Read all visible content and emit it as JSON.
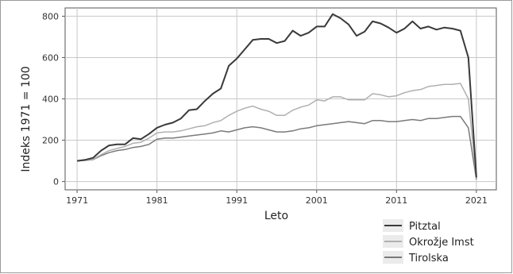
{
  "chart_data": {
    "type": "line",
    "title": "",
    "xlabel": "Leto",
    "ylabel": "Indeks 1971 = 100",
    "xlim": [
      1969.5,
      2023.5
    ],
    "ylim": [
      -40,
      840
    ],
    "x_ticks": [
      1971,
      1981,
      1991,
      2001,
      2011,
      2021
    ],
    "y_ticks": [
      0,
      200,
      400,
      600,
      800
    ],
    "grid": true,
    "legend_position": "bottom-right",
    "series": [
      {
        "name": "Pitztal",
        "color": "#3a3a3a",
        "x": [
          1971,
          1972,
          1973,
          1974,
          1975,
          1976,
          1977,
          1978,
          1979,
          1980,
          1981,
          1982,
          1983,
          1984,
          1985,
          1986,
          1987,
          1988,
          1989,
          1990,
          1991,
          1992,
          1993,
          1994,
          1995,
          1996,
          1997,
          1998,
          1999,
          2000,
          2001,
          2002,
          2003,
          2004,
          2005,
          2006,
          2007,
          2008,
          2009,
          2010,
          2011,
          2012,
          2013,
          2014,
          2015,
          2016,
          2017,
          2018,
          2019,
          2020,
          2021
        ],
        "values": [
          100,
          105,
          115,
          150,
          175,
          180,
          180,
          210,
          205,
          230,
          260,
          275,
          285,
          305,
          345,
          350,
          390,
          425,
          450,
          560,
          595,
          640,
          685,
          690,
          690,
          670,
          680,
          730,
          705,
          720,
          750,
          750,
          810,
          790,
          760,
          705,
          725,
          775,
          765,
          745,
          720,
          740,
          775,
          740,
          750,
          735,
          745,
          740,
          730,
          600,
          20
        ]
      },
      {
        "name": "Okrožje Imst",
        "color": "#b0b0b0",
        "x": [
          1971,
          1972,
          1973,
          1974,
          1975,
          1976,
          1977,
          1978,
          1979,
          1980,
          1981,
          1982,
          1983,
          1984,
          1985,
          1986,
          1987,
          1988,
          1989,
          1990,
          1991,
          1992,
          1993,
          1994,
          1995,
          1996,
          1997,
          1998,
          1999,
          2000,
          2001,
          2002,
          2003,
          2004,
          2005,
          2006,
          2007,
          2008,
          2009,
          2010,
          2011,
          2012,
          2013,
          2014,
          2015,
          2016,
          2017,
          2018,
          2019,
          2020,
          2021
        ],
        "values": [
          100,
          103,
          108,
          130,
          150,
          160,
          170,
          185,
          190,
          210,
          235,
          240,
          240,
          245,
          255,
          265,
          270,
          285,
          295,
          320,
          340,
          355,
          365,
          350,
          340,
          320,
          320,
          345,
          360,
          370,
          395,
          390,
          410,
          410,
          395,
          395,
          395,
          425,
          420,
          410,
          415,
          430,
          440,
          445,
          460,
          465,
          470,
          470,
          475,
          400,
          15
        ]
      },
      {
        "name": "Tirolska",
        "color": "#7a7a7a",
        "x": [
          1971,
          1972,
          1973,
          1974,
          1975,
          1976,
          1977,
          1978,
          1979,
          1980,
          1981,
          1982,
          1983,
          1984,
          1985,
          1986,
          1987,
          1988,
          1989,
          1990,
          1991,
          1992,
          1993,
          1994,
          1995,
          1996,
          1997,
          1998,
          1999,
          2000,
          2001,
          2002,
          2003,
          2004,
          2005,
          2006,
          2007,
          2008,
          2009,
          2010,
          2011,
          2012,
          2013,
          2014,
          2015,
          2016,
          2017,
          2018,
          2019,
          2020,
          2021
        ],
        "values": [
          100,
          102,
          106,
          125,
          140,
          150,
          155,
          165,
          170,
          180,
          205,
          210,
          210,
          215,
          220,
          225,
          230,
          235,
          245,
          240,
          250,
          260,
          265,
          260,
          250,
          240,
          240,
          245,
          255,
          260,
          270,
          275,
          280,
          285,
          290,
          285,
          280,
          295,
          295,
          290,
          290,
          295,
          300,
          295,
          305,
          305,
          310,
          315,
          315,
          260,
          10
        ]
      }
    ]
  }
}
